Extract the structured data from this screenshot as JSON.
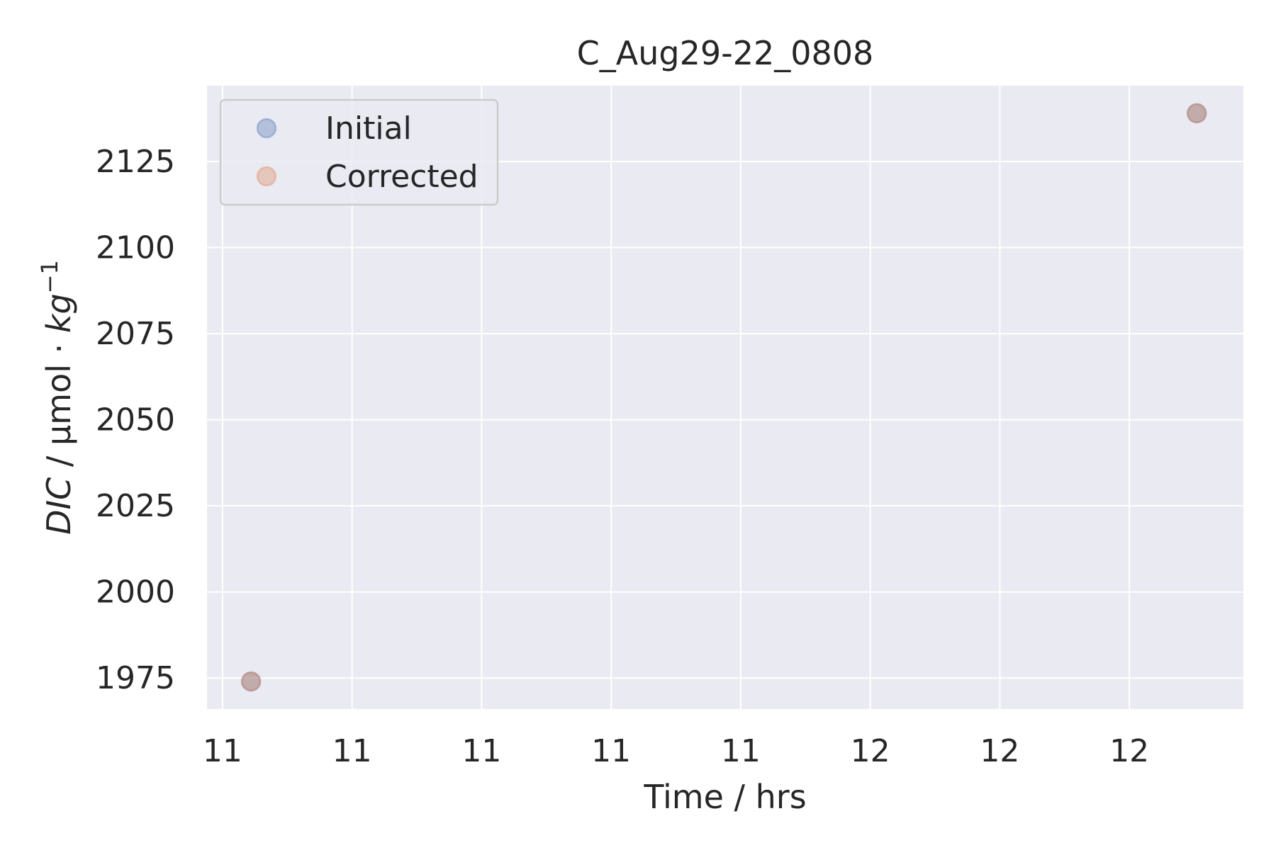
{
  "chart_data": {
    "type": "scatter",
    "title": "C_Aug29-22_0808",
    "xlabel": "Time / hrs",
    "ylabel_italic_1": "DIC",
    "ylabel_plain": " / µmol · ",
    "ylabel_italic_2": "kg",
    "ylabel_superscript": "−1",
    "xlim": [
      10.95,
      12.95
    ],
    "ylim": [
      1966,
      2147
    ],
    "x_ticks": [
      {
        "value": 10.98,
        "label": "11"
      },
      {
        "value": 11.23,
        "label": "11"
      },
      {
        "value": 11.48,
        "label": "11"
      },
      {
        "value": 11.73,
        "label": "11"
      },
      {
        "value": 11.98,
        "label": "11"
      },
      {
        "value": 12.23,
        "label": "12"
      },
      {
        "value": 12.48,
        "label": "12"
      },
      {
        "value": 12.73,
        "label": "12"
      }
    ],
    "y_ticks": [
      {
        "value": 1975,
        "label": "1975"
      },
      {
        "value": 2000,
        "label": "2000"
      },
      {
        "value": 2025,
        "label": "2025"
      },
      {
        "value": 2050,
        "label": "2050"
      },
      {
        "value": 2075,
        "label": "2075"
      },
      {
        "value": 2100,
        "label": "2100"
      },
      {
        "value": 2125,
        "label": "2125"
      }
    ],
    "grid": true,
    "legend_position": "top-left",
    "background_color": "#eaeaf2",
    "series": [
      {
        "name": "Initial",
        "color": "#4c72b0",
        "x": [
          11.035,
          12.86
        ],
        "y": [
          1974,
          2139
        ]
      },
      {
        "name": "Corrected",
        "color": "#dd8452",
        "x": [
          11.035,
          12.86
        ],
        "y": [
          1974,
          2139
        ]
      }
    ]
  }
}
